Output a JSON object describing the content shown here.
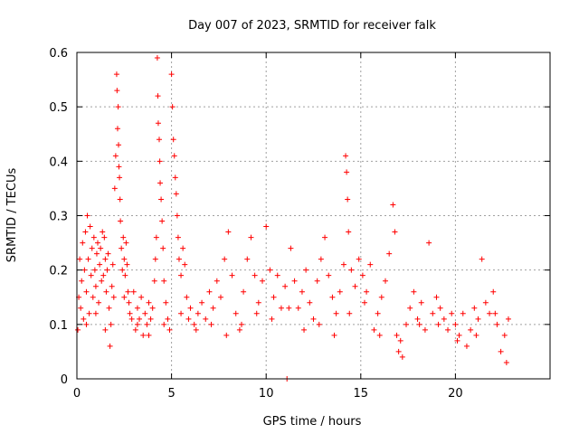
{
  "chart_data": {
    "type": "scatter",
    "title": "Day 007 of 2023, SRMTID for receiver falk",
    "xlabel": "GPS time / hours",
    "ylabel": "SRMTID / TECUs",
    "xlim": [
      0,
      25
    ],
    "ylim": [
      0,
      0.6
    ],
    "xticks": [
      0,
      5,
      10,
      15,
      20
    ],
    "xtick_labels": [
      "0",
      "5",
      "10",
      "15",
      "20"
    ],
    "yticks": [
      0,
      0.1,
      0.2,
      0.3,
      0.4,
      0.5,
      0.6
    ],
    "ytick_labels": [
      "0",
      "0.1",
      "0.2",
      "0.3",
      "0.4",
      "0.5",
      "0.6"
    ],
    "grid": true,
    "marker": "+",
    "marker_color": "#ff0000",
    "series": [
      {
        "name": "SRMTID",
        "points": [
          [
            0.05,
            0.09
          ],
          [
            0.1,
            0.15
          ],
          [
            0.15,
            0.22
          ],
          [
            0.2,
            0.13
          ],
          [
            0.25,
            0.18
          ],
          [
            0.3,
            0.25
          ],
          [
            0.35,
            0.11
          ],
          [
            0.4,
            0.2
          ],
          [
            0.45,
            0.27
          ],
          [
            0.5,
            0.16
          ],
          [
            0.55,
            0.3
          ],
          [
            0.6,
            0.22
          ],
          [
            0.65,
            0.12
          ],
          [
            0.7,
            0.28
          ],
          [
            0.75,
            0.19
          ],
          [
            0.8,
            0.24
          ],
          [
            0.85,
            0.15
          ],
          [
            0.9,
            0.26
          ],
          [
            0.95,
            0.2
          ],
          [
            1.0,
            0.17
          ],
          [
            1.05,
            0.23
          ],
          [
            1.1,
            0.25
          ],
          [
            1.15,
            0.14
          ],
          [
            1.2,
            0.21
          ],
          [
            1.25,
            0.24
          ],
          [
            1.3,
            0.18
          ],
          [
            1.35,
            0.27
          ],
          [
            1.4,
            0.19
          ],
          [
            1.45,
            0.26
          ],
          [
            1.5,
            0.22
          ],
          [
            1.55,
            0.16
          ],
          [
            1.6,
            0.2
          ],
          [
            1.65,
            0.23
          ],
          [
            1.7,
            0.13
          ],
          [
            1.75,
            0.06
          ],
          [
            1.8,
            0.1
          ],
          [
            1.85,
            0.17
          ],
          [
            1.9,
            0.21
          ],
          [
            1.95,
            0.15
          ],
          [
            2.0,
            0.35
          ],
          [
            2.05,
            0.41
          ],
          [
            2.1,
            0.56
          ],
          [
            2.12,
            0.53
          ],
          [
            2.15,
            0.46
          ],
          [
            2.18,
            0.5
          ],
          [
            2.2,
            0.43
          ],
          [
            2.22,
            0.39
          ],
          [
            2.25,
            0.37
          ],
          [
            2.28,
            0.33
          ],
          [
            2.3,
            0.29
          ],
          [
            2.35,
            0.24
          ],
          [
            2.4,
            0.2
          ],
          [
            2.45,
            0.26
          ],
          [
            2.5,
            0.22
          ],
          [
            2.55,
            0.19
          ],
          [
            2.6,
            0.25
          ],
          [
            2.65,
            0.21
          ],
          [
            2.7,
            0.16
          ],
          [
            2.75,
            0.14
          ],
          [
            2.8,
            0.12
          ],
          [
            2.9,
            0.11
          ],
          [
            3.0,
            0.16
          ],
          [
            3.1,
            0.09
          ],
          [
            3.2,
            0.13
          ],
          [
            3.3,
            0.11
          ],
          [
            3.4,
            0.15
          ],
          [
            3.5,
            0.08
          ],
          [
            3.6,
            0.12
          ],
          [
            3.7,
            0.1
          ],
          [
            3.8,
            0.14
          ],
          [
            3.9,
            0.11
          ],
          [
            4.0,
            0.13
          ],
          [
            4.1,
            0.18
          ],
          [
            4.15,
            0.22
          ],
          [
            4.2,
            0.26
          ],
          [
            4.25,
            0.59
          ],
          [
            4.28,
            0.52
          ],
          [
            4.3,
            0.47
          ],
          [
            4.35,
            0.44
          ],
          [
            4.38,
            0.4
          ],
          [
            4.4,
            0.36
          ],
          [
            4.45,
            0.33
          ],
          [
            4.5,
            0.29
          ],
          [
            4.55,
            0.24
          ],
          [
            4.6,
            0.18
          ],
          [
            4.7,
            0.14
          ],
          [
            4.8,
            0.11
          ],
          [
            4.9,
            0.09
          ],
          [
            5.0,
            0.56
          ],
          [
            5.05,
            0.5
          ],
          [
            5.1,
            0.44
          ],
          [
            5.15,
            0.41
          ],
          [
            5.2,
            0.37
          ],
          [
            5.25,
            0.34
          ],
          [
            5.3,
            0.3
          ],
          [
            5.35,
            0.26
          ],
          [
            5.4,
            0.22
          ],
          [
            5.5,
            0.19
          ],
          [
            5.6,
            0.24
          ],
          [
            5.7,
            0.21
          ],
          [
            5.8,
            0.15
          ],
          [
            5.9,
            0.11
          ],
          [
            6.0,
            0.13
          ],
          [
            6.2,
            0.1
          ],
          [
            6.4,
            0.12
          ],
          [
            6.6,
            0.14
          ],
          [
            6.8,
            0.11
          ],
          [
            7.0,
            0.16
          ],
          [
            7.2,
            0.13
          ],
          [
            7.4,
            0.18
          ],
          [
            7.6,
            0.15
          ],
          [
            7.8,
            0.22
          ],
          [
            8.0,
            0.27
          ],
          [
            8.2,
            0.19
          ],
          [
            8.4,
            0.12
          ],
          [
            8.6,
            0.09
          ],
          [
            8.8,
            0.16
          ],
          [
            9.0,
            0.22
          ],
          [
            9.2,
            0.26
          ],
          [
            9.4,
            0.19
          ],
          [
            9.6,
            0.14
          ],
          [
            9.8,
            0.18
          ],
          [
            10.0,
            0.28
          ],
          [
            10.2,
            0.2
          ],
          [
            10.4,
            0.15
          ],
          [
            10.6,
            0.19
          ],
          [
            10.8,
            0.13
          ],
          [
            11.0,
            0.17
          ],
          [
            11.1,
            0.0
          ],
          [
            11.3,
            0.24
          ],
          [
            11.5,
            0.18
          ],
          [
            11.7,
            0.13
          ],
          [
            11.9,
            0.16
          ],
          [
            12.1,
            0.2
          ],
          [
            12.3,
            0.14
          ],
          [
            12.5,
            0.11
          ],
          [
            12.7,
            0.18
          ],
          [
            12.9,
            0.22
          ],
          [
            13.1,
            0.26
          ],
          [
            13.3,
            0.19
          ],
          [
            13.5,
            0.15
          ],
          [
            13.7,
            0.12
          ],
          [
            13.9,
            0.16
          ],
          [
            14.1,
            0.21
          ],
          [
            14.2,
            0.41
          ],
          [
            14.25,
            0.38
          ],
          [
            14.3,
            0.33
          ],
          [
            14.35,
            0.27
          ],
          [
            14.5,
            0.2
          ],
          [
            14.7,
            0.17
          ],
          [
            14.9,
            0.22
          ],
          [
            15.1,
            0.19
          ],
          [
            15.3,
            0.16
          ],
          [
            15.5,
            0.21
          ],
          [
            15.7,
            0.09
          ],
          [
            15.9,
            0.12
          ],
          [
            16.1,
            0.15
          ],
          [
            16.3,
            0.18
          ],
          [
            16.5,
            0.23
          ],
          [
            16.7,
            0.32
          ],
          [
            16.8,
            0.27
          ],
          [
            16.9,
            0.08
          ],
          [
            17.0,
            0.05
          ],
          [
            17.2,
            0.04
          ],
          [
            17.4,
            0.1
          ],
          [
            17.6,
            0.13
          ],
          [
            17.8,
            0.16
          ],
          [
            18.0,
            0.11
          ],
          [
            18.2,
            0.14
          ],
          [
            18.4,
            0.09
          ],
          [
            18.6,
            0.25
          ],
          [
            18.8,
            0.12
          ],
          [
            19.0,
            0.15
          ],
          [
            19.2,
            0.13
          ],
          [
            19.4,
            0.11
          ],
          [
            19.6,
            0.09
          ],
          [
            19.8,
            0.12
          ],
          [
            20.0,
            0.1
          ],
          [
            20.2,
            0.08
          ],
          [
            20.4,
            0.12
          ],
          [
            20.6,
            0.06
          ],
          [
            20.8,
            0.09
          ],
          [
            21.0,
            0.13
          ],
          [
            21.2,
            0.11
          ],
          [
            21.4,
            0.22
          ],
          [
            21.6,
            0.14
          ],
          [
            21.8,
            0.12
          ],
          [
            22.0,
            0.16
          ],
          [
            22.2,
            0.1
          ],
          [
            22.4,
            0.05
          ],
          [
            22.6,
            0.08
          ],
          [
            22.8,
            0.11
          ],
          [
            0.5,
            0.1
          ],
          [
            1.0,
            0.12
          ],
          [
            1.5,
            0.09
          ],
          [
            2.5,
            0.15
          ],
          [
            3.2,
            0.1
          ],
          [
            3.8,
            0.08
          ],
          [
            4.6,
            0.1
          ],
          [
            5.5,
            0.12
          ],
          [
            6.3,
            0.09
          ],
          [
            7.1,
            0.1
          ],
          [
            7.9,
            0.08
          ],
          [
            8.7,
            0.1
          ],
          [
            9.5,
            0.12
          ],
          [
            10.3,
            0.11
          ],
          [
            11.2,
            0.13
          ],
          [
            12.0,
            0.09
          ],
          [
            12.8,
            0.1
          ],
          [
            13.6,
            0.08
          ],
          [
            14.4,
            0.12
          ],
          [
            15.2,
            0.14
          ],
          [
            16.0,
            0.08
          ],
          [
            17.1,
            0.07
          ],
          [
            18.1,
            0.1
          ],
          [
            19.1,
            0.1
          ],
          [
            20.1,
            0.07
          ],
          [
            21.1,
            0.08
          ],
          [
            22.1,
            0.12
          ],
          [
            22.7,
            0.03
          ]
        ]
      }
    ]
  }
}
